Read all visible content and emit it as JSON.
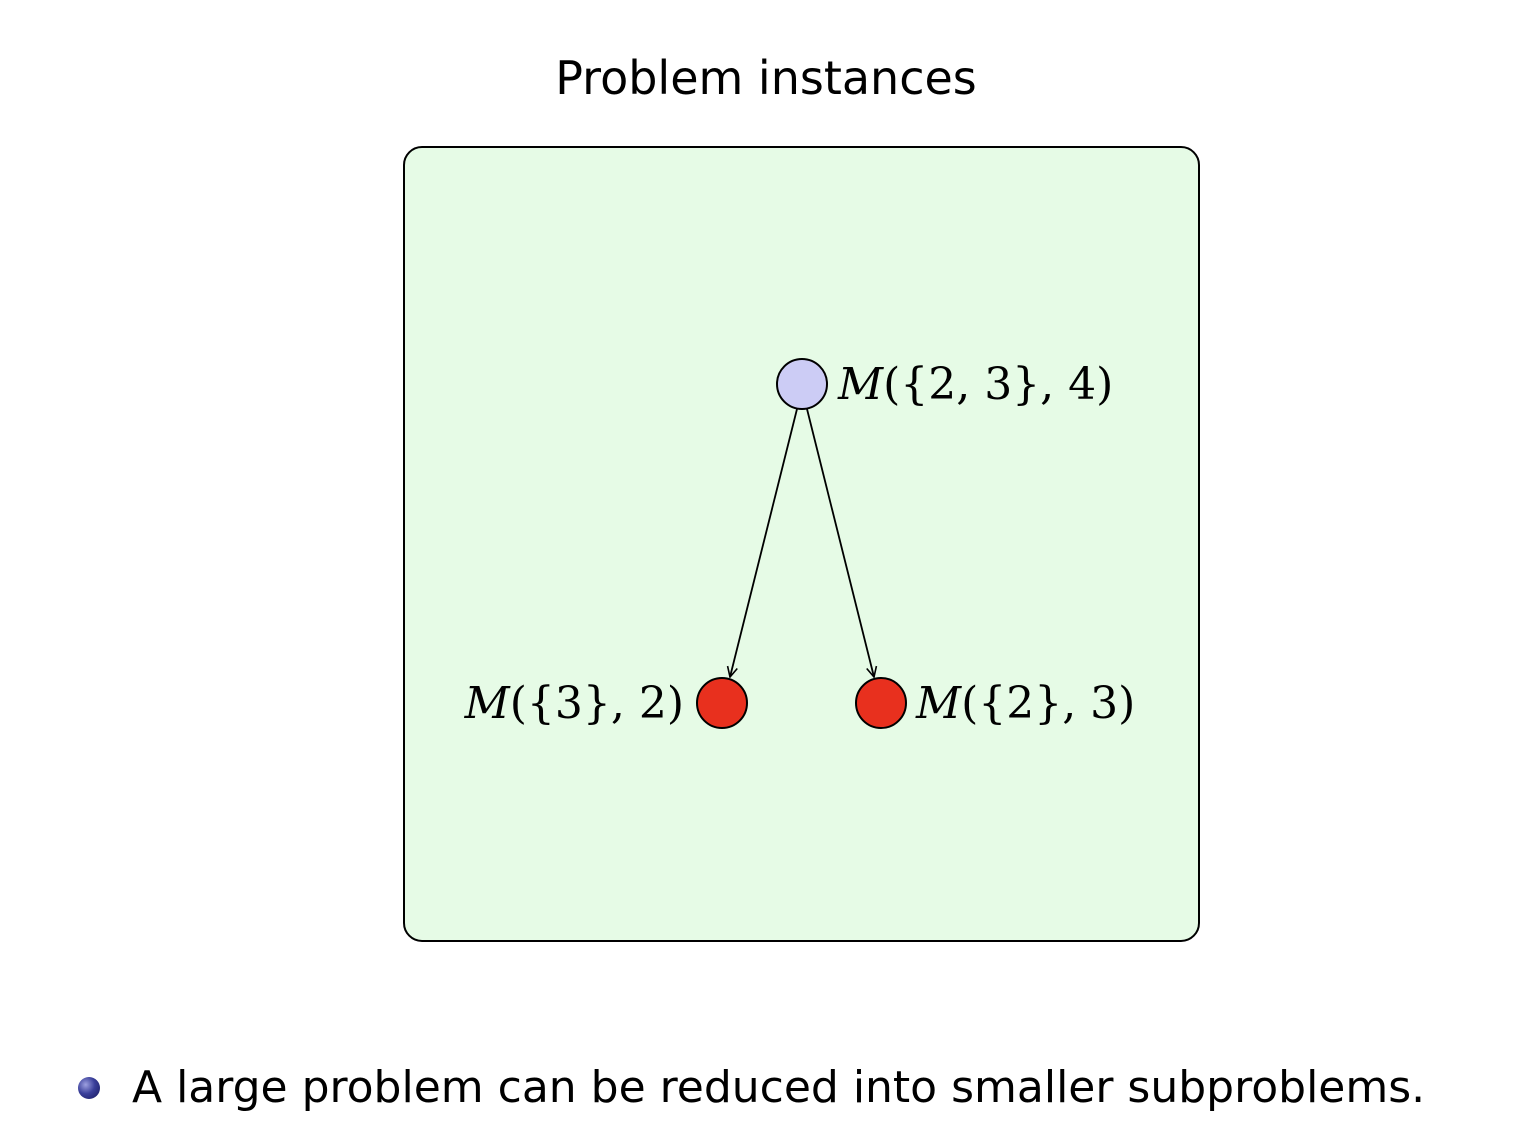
{
  "slide": {
    "title": "Problem instances",
    "bullets": [
      "A large problem can be reduced into smaller subproblems."
    ]
  },
  "diagram": {
    "nodes": [
      {
        "id": "root",
        "label_var": "M",
        "label_args": "({2, 3}, 4)",
        "fill": "#ccccf5",
        "label_side": "right"
      },
      {
        "id": "left",
        "label_var": "M",
        "label_args": "({3}, 2)",
        "fill": "#e8301e",
        "label_side": "left"
      },
      {
        "id": "right",
        "label_var": "M",
        "label_args": "({2}, 3)",
        "fill": "#e8301e",
        "label_side": "right"
      }
    ],
    "edges": [
      {
        "from": "root",
        "to": "left"
      },
      {
        "from": "root",
        "to": "right"
      }
    ],
    "panel_fill": "#e6fbe6",
    "stroke": "#000000"
  }
}
